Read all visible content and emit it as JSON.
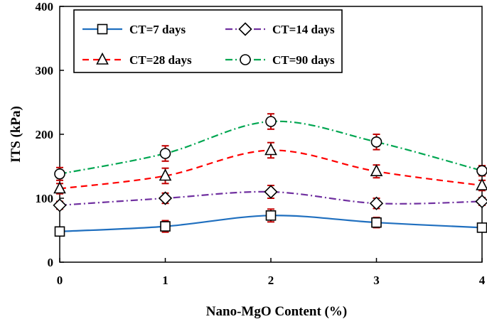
{
  "chart_data": {
    "type": "line",
    "title": "",
    "xlabel": "Nano-MgO Content (%)",
    "ylabel": "ITS (kPa)",
    "x": [
      0,
      1,
      2,
      3,
      4
    ],
    "xlim": [
      0,
      4
    ],
    "ylim": [
      0,
      400
    ],
    "x_ticks": [
      "0",
      "1",
      "2",
      "3",
      "4"
    ],
    "y_ticks": [
      "0",
      "100",
      "200",
      "300",
      "400"
    ],
    "grid": false,
    "legend_position": "top",
    "error_bar_color": "#c00000",
    "series": [
      {
        "name": "CT=7 days",
        "values": [
          48,
          56,
          73,
          62,
          54
        ],
        "errors": [
          5,
          9,
          10,
          8,
          6
        ],
        "color": "#1f6fbf",
        "dash": "solid",
        "marker": "square"
      },
      {
        "name": "CT=14 days",
        "values": [
          89,
          100,
          110,
          92,
          95
        ],
        "errors": [
          6,
          8,
          10,
          8,
          6
        ],
        "color": "#7030a0",
        "dash": "dashdot",
        "marker": "diamond"
      },
      {
        "name": "CT=28 days",
        "values": [
          115,
          135,
          175,
          142,
          120
        ],
        "errors": [
          8,
          12,
          12,
          10,
          8
        ],
        "color": "#ff0000",
        "dash": "dashed",
        "marker": "triangle"
      },
      {
        "name": "CT=90 days",
        "values": [
          138,
          170,
          220,
          188,
          143
        ],
        "errors": [
          10,
          12,
          12,
          12,
          8
        ],
        "color": "#00a651",
        "dash": "dashdot",
        "marker": "circle"
      }
    ]
  }
}
